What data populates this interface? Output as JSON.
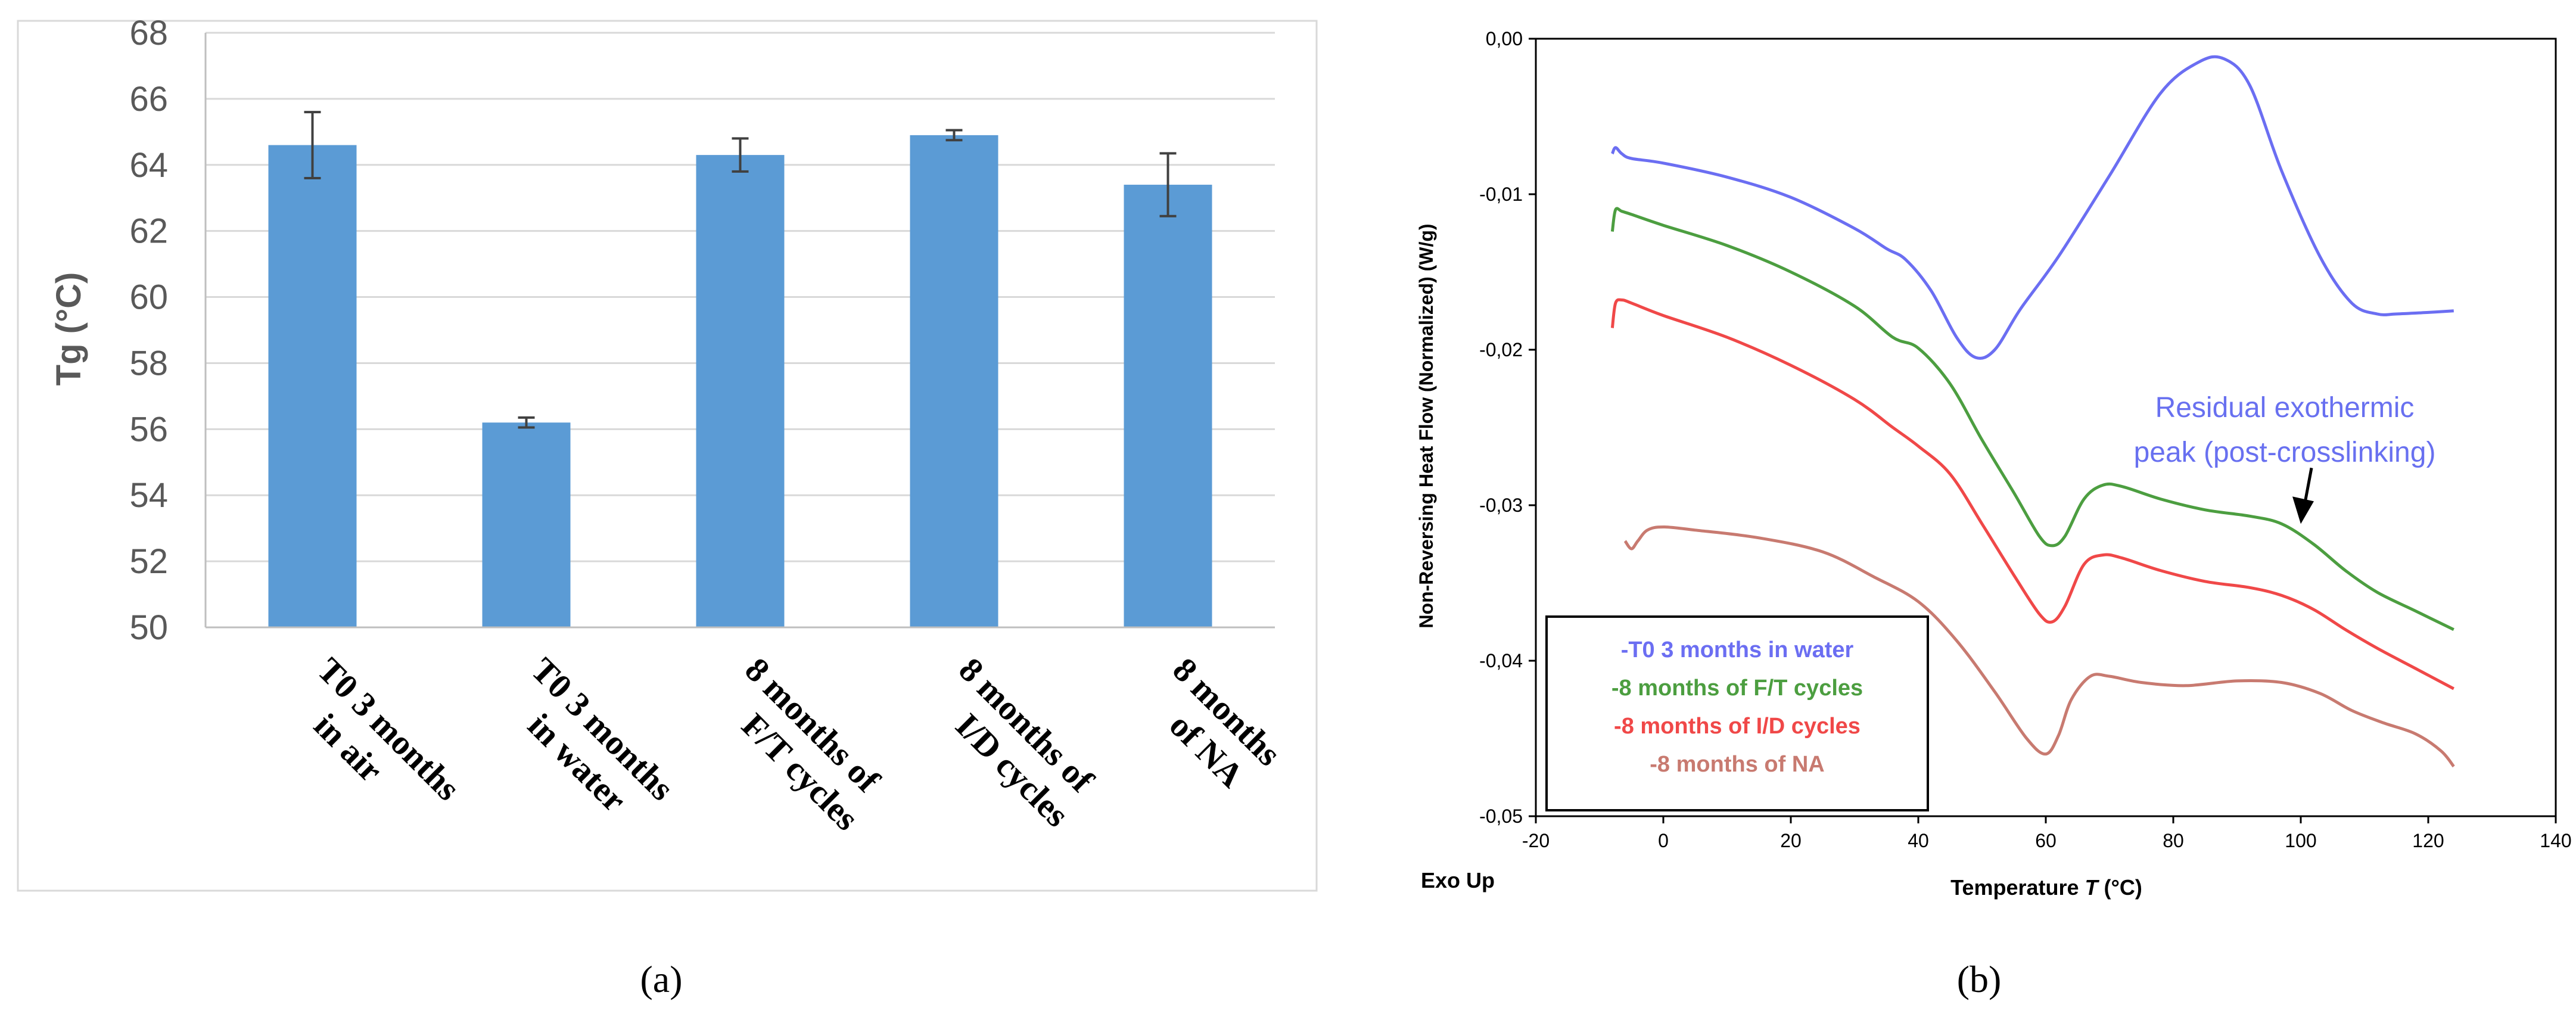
{
  "panel_labels": {
    "a": "(a)",
    "b": "(b)"
  },
  "chart_data": [
    {
      "id": "a",
      "type": "bar",
      "title": "",
      "xlabel": "",
      "ylabel": "Tg (°C)",
      "ylim": [
        50,
        68
      ],
      "yticks": [
        50,
        52,
        54,
        56,
        58,
        60,
        62,
        64,
        66,
        68
      ],
      "grid": true,
      "bar_color": "#5b9bd5",
      "categories": [
        [
          "T0 3 months",
          "in air"
        ],
        [
          "T0 3 months",
          "in water"
        ],
        [
          "8 months of",
          "F/T cycles"
        ],
        [
          "8 months of",
          "I/D cycles"
        ],
        [
          "8 months",
          "of NA"
        ]
      ],
      "values": [
        64.6,
        56.2,
        64.3,
        64.9,
        63.4
      ],
      "errors": [
        1.0,
        0.15,
        0.5,
        0.15,
        0.95
      ]
    },
    {
      "id": "b",
      "type": "line",
      "title": "",
      "xlabel_prefix": "Temperature ",
      "xlabel_var": "T",
      "xlabel_suffix": " (°C)",
      "ylabel": "Non-Reversing Heat Flow (Normalized) (W/g)",
      "corner_label": "Exo Up",
      "xlim": [
        -20,
        140
      ],
      "ylim": [
        -0.05,
        0.0
      ],
      "xticks": [
        -20,
        0,
        20,
        40,
        60,
        80,
        100,
        120,
        140
      ],
      "yticks": [
        0.0,
        -0.01,
        -0.02,
        -0.03,
        -0.04,
        -0.05
      ],
      "ytick_labels": [
        "0,00",
        "-0,01",
        "-0,02",
        "-0,03",
        "-0,04",
        "-0,05"
      ],
      "annotation": [
        "Residual exothermic",
        "peak (post-crosslinking)"
      ],
      "annotation_color": "#6870f0",
      "annotation_arrow": {
        "from": [
          100,
          -0.0276
        ],
        "to": [
          100,
          -0.0312
        ]
      },
      "series": [
        {
          "name": "-T0 3 months in water",
          "color": "#6b6ef2",
          "x": [
            -8,
            -7.5,
            -6.5,
            -5,
            0,
            10,
            20,
            30,
            35,
            38,
            42,
            46,
            49,
            52,
            56,
            62,
            70,
            78,
            84,
            88,
            92,
            97,
            103,
            108,
            112,
            115,
            120,
            124
          ],
          "y": [
            -0.0074,
            -0.007,
            -0.0074,
            -0.0077,
            -0.008,
            -0.0089,
            -0.0102,
            -0.0122,
            -0.0135,
            -0.0142,
            -0.0162,
            -0.0192,
            -0.0205,
            -0.02,
            -0.0174,
            -0.014,
            -0.0088,
            -0.0035,
            -0.0015,
            -0.0013,
            -0.003,
            -0.0085,
            -0.014,
            -0.017,
            -0.0177,
            -0.0177,
            -0.0176,
            -0.0175
          ]
        },
        {
          "name": "-8 months of F/T cycles",
          "color": "#4c9e40",
          "x": [
            -8,
            -7.5,
            -6.5,
            -5,
            0,
            10,
            20,
            30,
            36,
            40,
            45,
            50,
            55,
            59,
            61,
            63,
            66,
            69,
            72,
            78,
            85,
            92,
            97,
            102,
            107,
            112,
            118,
            124
          ],
          "y": [
            -0.0124,
            -0.011,
            -0.0111,
            -0.0113,
            -0.012,
            -0.0133,
            -0.015,
            -0.0172,
            -0.0192,
            -0.0199,
            -0.0222,
            -0.0258,
            -0.0292,
            -0.032,
            -0.0326,
            -0.032,
            -0.0296,
            -0.0287,
            -0.0288,
            -0.0296,
            -0.0303,
            -0.0307,
            -0.0312,
            -0.0325,
            -0.0342,
            -0.0356,
            -0.0368,
            -0.038
          ]
        },
        {
          "name": "-8 months of I/D cycles",
          "color": "#f04848",
          "x": [
            -8,
            -7.5,
            -6.5,
            -5,
            0,
            10,
            20,
            30,
            36,
            40,
            45,
            50,
            55,
            59,
            61,
            63,
            66,
            69,
            72,
            78,
            85,
            92,
            97,
            102,
            107,
            112,
            118,
            124
          ],
          "y": [
            -0.0186,
            -0.017,
            -0.0168,
            -0.017,
            -0.0178,
            -0.0192,
            -0.021,
            -0.0232,
            -0.025,
            -0.0262,
            -0.028,
            -0.0312,
            -0.0345,
            -0.037,
            -0.0375,
            -0.0365,
            -0.0338,
            -0.0332,
            -0.0334,
            -0.0342,
            -0.0349,
            -0.0353,
            -0.0358,
            -0.0367,
            -0.038,
            -0.0392,
            -0.0405,
            -0.0418
          ]
        },
        {
          "name": "-8 months of NA",
          "color": "#c87a70",
          "x": [
            -6,
            -5,
            -4,
            -2.5,
            0,
            5,
            15,
            25,
            33,
            40,
            46,
            52,
            57,
            60,
            62,
            64,
            67,
            70,
            75,
            82,
            90,
            97,
            103,
            108,
            113,
            118,
            122,
            124
          ],
          "y": [
            -0.0323,
            -0.0328,
            -0.0323,
            -0.0316,
            -0.0314,
            -0.0316,
            -0.0321,
            -0.033,
            -0.0346,
            -0.0362,
            -0.0387,
            -0.042,
            -0.045,
            -0.046,
            -0.0448,
            -0.0425,
            -0.041,
            -0.041,
            -0.0414,
            -0.0416,
            -0.0413,
            -0.0414,
            -0.0421,
            -0.0432,
            -0.044,
            -0.0447,
            -0.0458,
            -0.0468
          ]
        }
      ]
    }
  ]
}
